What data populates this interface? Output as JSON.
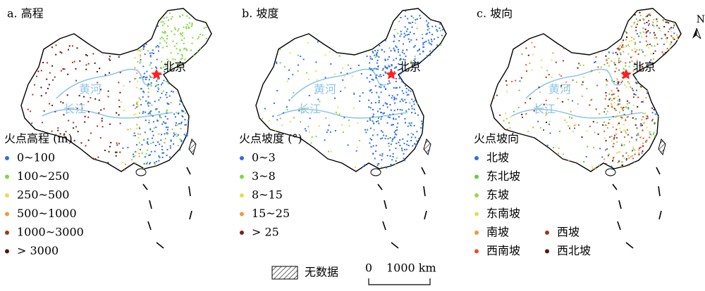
{
  "panels": [
    {
      "title": "a. 高程",
      "labels": {
        "capital": "北京",
        "yellow_river": "黄河",
        "yangtze": "长江"
      },
      "legend": {
        "title": "火点高程 (m)",
        "items": [
          {
            "label": "0~100",
            "color": "#2f6ee0"
          },
          {
            "label": "100~250",
            "color": "#7fd83a"
          },
          {
            "label": "250~500",
            "color": "#e6e04a"
          },
          {
            "label": "500~1000",
            "color": "#f19a3a"
          },
          {
            "label": "1000~3000",
            "color": "#a8321c"
          },
          {
            "label": "> 3000",
            "color": "#5a120c"
          }
        ]
      }
    },
    {
      "title": "b. 坡度",
      "labels": {
        "capital": "北京",
        "yellow_river": "黄河",
        "yangtze": "长江"
      },
      "legend": {
        "title": "火点坡度 (°)",
        "items": [
          {
            "label": "0~3",
            "color": "#2f6ee0"
          },
          {
            "label": "3~8",
            "color": "#7fd83a"
          },
          {
            "label": "8~15",
            "color": "#e6e04a"
          },
          {
            "label": "15~25",
            "color": "#f19a3a"
          },
          {
            "label": "> 25",
            "color": "#8a1a10"
          }
        ]
      }
    },
    {
      "title": "c. 坡向",
      "labels": {
        "capital": "北京",
        "yellow_river": "黄河",
        "yangtze": "长江"
      },
      "legend": {
        "title": "火点坡向",
        "items": [
          {
            "label": "北坡",
            "color": "#2f6ee0"
          },
          {
            "label": "东北坡",
            "color": "#5fd040"
          },
          {
            "label": "东坡",
            "color": "#9ad84a"
          },
          {
            "label": "东南坡",
            "color": "#e2e24a"
          },
          {
            "label": "南坡",
            "color": "#f19a3a"
          },
          {
            "label": "西南坡",
            "color": "#e8502a"
          },
          {
            "label": "西坡",
            "color": "#a8321c"
          },
          {
            "label": "西北坡",
            "color": "#5a120c"
          }
        ]
      }
    }
  ],
  "north_label": "N",
  "no_data_label": "无数据",
  "scale_bar": {
    "start": "0",
    "end": "1000 km"
  }
}
